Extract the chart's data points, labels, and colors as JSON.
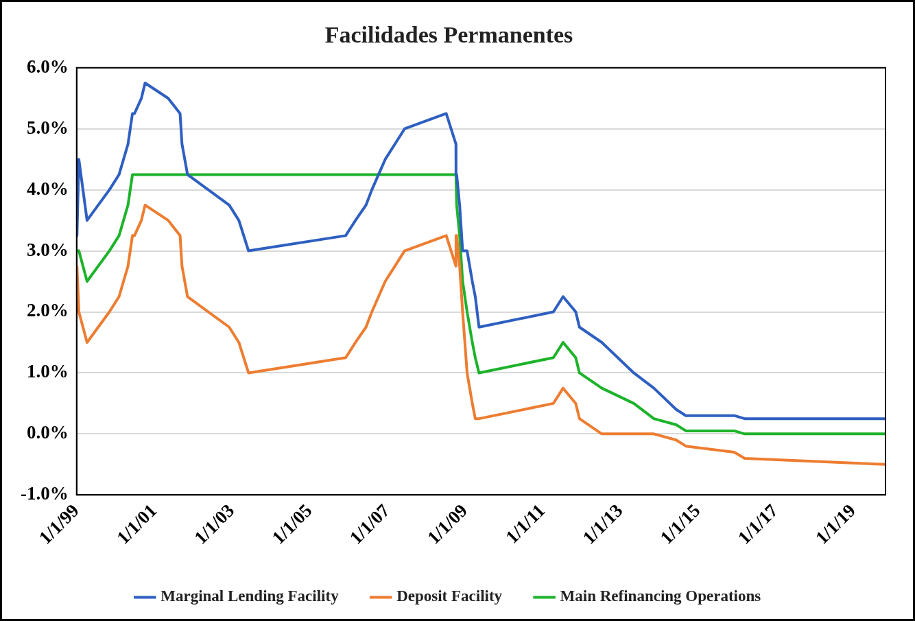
{
  "chart_data": {
    "type": "line",
    "title": "Facilidades Permanentes",
    "x": [
      "1999-01-04",
      "1999-01-22",
      "1999-04-09",
      "1999-11-05",
      "2000-02-04",
      "2000-03-17",
      "2000-04-28",
      "2000-06-09",
      "2000-06-28",
      "2000-09-01",
      "2000-10-06",
      "2001-05-11",
      "2001-08-31",
      "2001-09-18",
      "2001-11-09",
      "2002-12-06",
      "2003-03-07",
      "2003-06-06",
      "2005-12-06",
      "2006-03-08",
      "2006-06-15",
      "2006-08-09",
      "2006-10-11",
      "2006-12-13",
      "2007-03-14",
      "2007-06-13",
      "2008-07-09",
      "2008-10-08",
      "2008-10-09",
      "2008-10-15",
      "2008-11-12",
      "2008-12-10",
      "2009-01-21",
      "2009-03-11",
      "2009-04-08",
      "2009-05-13",
      "2011-04-13",
      "2011-07-13",
      "2011-11-09",
      "2011-12-14",
      "2012-07-11",
      "2013-05-08",
      "2013-11-13",
      "2014-06-11",
      "2014-09-10",
      "2015-12-09",
      "2016-03-16",
      "2019-11-01"
    ],
    "series": [
      {
        "name": "Marginal Lending Facility",
        "color": "#2e5fc1",
        "values": [
          3.25,
          4.5,
          3.5,
          4.0,
          4.25,
          4.5,
          4.75,
          5.25,
          5.25,
          5.5,
          5.75,
          5.5,
          5.25,
          4.75,
          4.25,
          3.75,
          3.5,
          3.0,
          3.25,
          3.5,
          3.75,
          4.0,
          4.25,
          4.5,
          4.75,
          5.0,
          5.25,
          4.75,
          4.25,
          4.25,
          3.75,
          3.0,
          3.0,
          2.5,
          2.25,
          1.75,
          2.0,
          2.25,
          2.0,
          1.75,
          1.5,
          1.0,
          0.75,
          0.4,
          0.3,
          0.3,
          0.25,
          0.25
        ]
      },
      {
        "name": "Deposit Facility",
        "color": "#ed7d31",
        "values": [
          2.75,
          2.0,
          1.5,
          2.0,
          2.25,
          2.5,
          2.75,
          3.25,
          3.25,
          3.5,
          3.75,
          3.5,
          3.25,
          2.75,
          2.25,
          1.75,
          1.5,
          1.0,
          1.25,
          1.5,
          1.75,
          2.0,
          2.25,
          2.5,
          2.75,
          3.0,
          3.25,
          2.75,
          3.25,
          3.25,
          2.75,
          2.0,
          1.0,
          0.5,
          0.25,
          0.25,
          0.5,
          0.75,
          0.5,
          0.25,
          0.0,
          0.0,
          0.0,
          -0.1,
          -0.2,
          -0.3,
          -0.4,
          -0.5
        ]
      },
      {
        "name": "Main Refinancing Operations",
        "color": "#1db32a",
        "values": [
          3.0,
          3.0,
          2.5,
          3.0,
          3.25,
          3.5,
          3.75,
          4.25,
          4.25,
          4.25,
          4.25,
          4.25,
          4.25,
          4.25,
          4.25,
          4.25,
          4.25,
          4.25,
          4.25,
          4.25,
          4.25,
          4.25,
          4.25,
          4.25,
          4.25,
          4.25,
          4.25,
          4.25,
          4.25,
          3.75,
          3.25,
          2.5,
          2.0,
          1.5,
          1.25,
          1.0,
          1.25,
          1.5,
          1.25,
          1.0,
          0.75,
          0.5,
          0.25,
          0.15,
          0.05,
          0.05,
          0.0,
          0.0
        ]
      }
    ],
    "xlim": [
      "1999-01-01",
      "2019-11-01"
    ],
    "xticks": [
      {
        "value": "1999-01-01",
        "label": "1/1/99"
      },
      {
        "value": "2001-01-01",
        "label": "1/1/01"
      },
      {
        "value": "2003-01-01",
        "label": "1/1/03"
      },
      {
        "value": "2005-01-01",
        "label": "1/1/05"
      },
      {
        "value": "2007-01-01",
        "label": "1/1/07"
      },
      {
        "value": "2009-01-01",
        "label": "1/1/09"
      },
      {
        "value": "2011-01-01",
        "label": "1/1/11"
      },
      {
        "value": "2013-01-01",
        "label": "1/1/13"
      },
      {
        "value": "2015-01-01",
        "label": "1/1/15"
      },
      {
        "value": "2017-01-01",
        "label": "1/1/17"
      },
      {
        "value": "2019-01-01",
        "label": "1/1/19"
      }
    ],
    "ylim": [
      -1,
      6
    ],
    "yticks": [
      {
        "value": -1,
        "label": "-1.0%"
      },
      {
        "value": 0,
        "label": "0.0%"
      },
      {
        "value": 1,
        "label": "1.0%"
      },
      {
        "value": 2,
        "label": "2.0%"
      },
      {
        "value": 3,
        "label": "3.0%"
      },
      {
        "value": 4,
        "label": "4.0%"
      },
      {
        "value": 5,
        "label": "5.0%"
      },
      {
        "value": 6,
        "label": "6.0%"
      }
    ],
    "grid": "y",
    "legend": "bottom",
    "marker": "none",
    "line_style": "solid"
  }
}
